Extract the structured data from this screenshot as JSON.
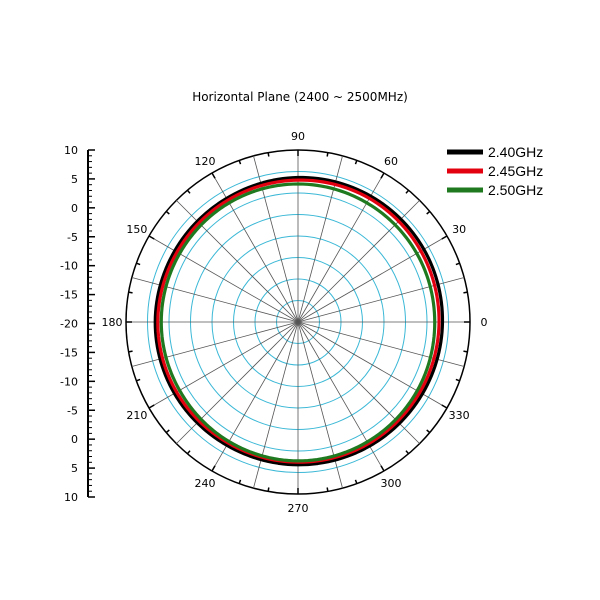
{
  "chart_data": {
    "type": "polar-line",
    "title": "Horizontal Plane (2400 ~ 2500MHz)",
    "angular_axis": {
      "unit": "degrees",
      "tick_labels": [
        "0",
        "30",
        "60",
        "90",
        "120",
        "150",
        "180",
        "210",
        "240",
        "270",
        "300",
        "330"
      ]
    },
    "radial_axis": {
      "range": [
        -30,
        10
      ],
      "tick_labels_upper": [
        "10",
        "5",
        "0",
        "-5",
        "-10",
        "-15",
        "-20"
      ],
      "tick_labels_lower": [
        "-15",
        "-10",
        "-5",
        "0",
        "5",
        "10"
      ],
      "grid_rings_at": [
        -25,
        -20,
        -15,
        -10,
        -5,
        0,
        5,
        10
      ]
    },
    "legend_position": "top-right",
    "series": [
      {
        "name": "2.40GHz",
        "color": "#000000",
        "angles": [
          0,
          30,
          60,
          90,
          120,
          150,
          180,
          210,
          240,
          270,
          300,
          330,
          360
        ],
        "gain": [
          3.6,
          3.8,
          3.8,
          3.6,
          3.2,
          3.1,
          3.2,
          3.2,
          3.1,
          3.2,
          3.3,
          3.4,
          3.6
        ]
      },
      {
        "name": "2.45GHz",
        "color": "#e3000f",
        "angles": [
          0,
          30,
          60,
          90,
          120,
          150,
          180,
          210,
          240,
          270,
          300,
          330,
          360
        ],
        "gain": [
          2.8,
          3.0,
          3.2,
          3.0,
          2.7,
          2.5,
          2.6,
          2.6,
          2.5,
          2.6,
          2.7,
          2.7,
          2.8
        ]
      },
      {
        "name": "2.50GHz",
        "color": "#1f7a1f",
        "angles": [
          0,
          30,
          60,
          90,
          120,
          150,
          180,
          210,
          240,
          270,
          300,
          330,
          360
        ],
        "gain": [
          1.8,
          1.9,
          2.0,
          2.1,
          2.0,
          1.8,
          1.8,
          1.8,
          2.1,
          2.3,
          2.2,
          2.0,
          1.8
        ]
      }
    ]
  }
}
